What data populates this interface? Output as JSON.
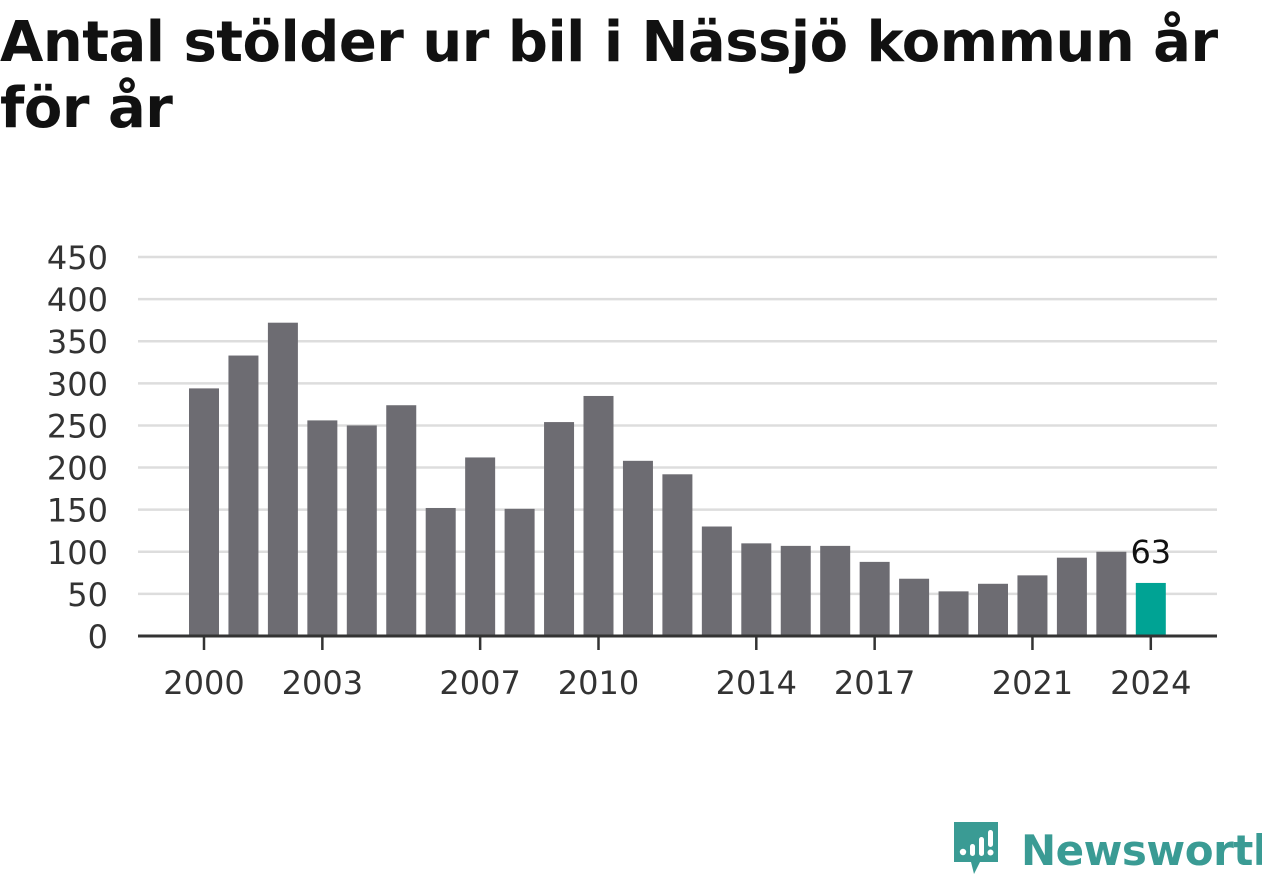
{
  "title": "Antal stölder ur bil i Nässjö kommun år för år",
  "brand": {
    "name": "Newsworthy",
    "color": "#3a9b94",
    "icon": "newsworthy-logo-icon"
  },
  "colors": {
    "bar": "#6d6c72",
    "highlight": "#00a394",
    "grid": "#dddddd",
    "axis": "#333333",
    "text": "#333333"
  },
  "chart_data": {
    "type": "bar",
    "categories": [
      "2000",
      "2001",
      "2002",
      "2003",
      "2004",
      "2005",
      "2006",
      "2007",
      "2008",
      "2009",
      "2010",
      "2011",
      "2012",
      "2013",
      "2014",
      "2015",
      "2016",
      "2017",
      "2018",
      "2019",
      "2020",
      "2021",
      "2022",
      "2023",
      "2024"
    ],
    "values": [
      294,
      333,
      372,
      256,
      250,
      274,
      152,
      212,
      151,
      254,
      285,
      208,
      192,
      130,
      110,
      107,
      107,
      88,
      68,
      53,
      62,
      72,
      93,
      100,
      63
    ],
    "highlight_index": 24,
    "annotation": {
      "index": 24,
      "text": "63"
    },
    "x_tick_labels": [
      "2000",
      "2003",
      "2007",
      "2010",
      "2014",
      "2017",
      "2021",
      "2024"
    ],
    "y_ticks": [
      0,
      50,
      100,
      150,
      200,
      250,
      300,
      350,
      400,
      450
    ],
    "ylim": [
      0,
      450
    ],
    "grid": true,
    "legend": "none",
    "xlabel": "",
    "ylabel": ""
  }
}
